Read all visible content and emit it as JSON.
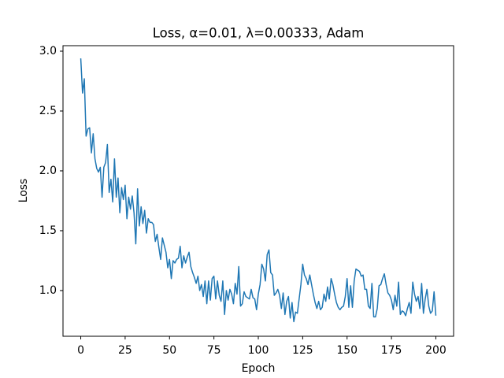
{
  "chart_data": {
    "type": "line",
    "title": "Loss, α=0.01, λ=0.00333, Adam",
    "x_label": "Epoch",
    "y_label": "Loss",
    "x": [
      0,
      1,
      2,
      3,
      4,
      5,
      6,
      7,
      8,
      9,
      10,
      11,
      12,
      13,
      14,
      15,
      16,
      17,
      18,
      19,
      20,
      21,
      22,
      23,
      24,
      25,
      26,
      27,
      28,
      29,
      30,
      31,
      32,
      33,
      34,
      35,
      36,
      37,
      38,
      39,
      40,
      41,
      42,
      43,
      44,
      45,
      46,
      47,
      48,
      49,
      50,
      51,
      52,
      53,
      54,
      55,
      56,
      57,
      58,
      59,
      60,
      61,
      62,
      63,
      64,
      65,
      66,
      67,
      68,
      69,
      70,
      71,
      72,
      73,
      74,
      75,
      76,
      77,
      78,
      79,
      80,
      81,
      82,
      83,
      84,
      85,
      86,
      87,
      88,
      89,
      90,
      91,
      92,
      93,
      94,
      95,
      96,
      97,
      98,
      99,
      100,
      101,
      102,
      103,
      104,
      105,
      106,
      107,
      108,
      109,
      110,
      111,
      112,
      113,
      114,
      115,
      116,
      117,
      118,
      119,
      120,
      121,
      122,
      123,
      124,
      125,
      126,
      127,
      128,
      129,
      130,
      131,
      132,
      133,
      134,
      135,
      136,
      137,
      138,
      139,
      140,
      141,
      142,
      143,
      144,
      145,
      146,
      147,
      148,
      149,
      150,
      151,
      152,
      153,
      154,
      155,
      156,
      157,
      158,
      159,
      160,
      161,
      162,
      163,
      164,
      165,
      166,
      167,
      168,
      169,
      170,
      171,
      172,
      173,
      174,
      175,
      176,
      177,
      178,
      179,
      180,
      181,
      182,
      183,
      184,
      185,
      186,
      187,
      188,
      189,
      190,
      191,
      192,
      193,
      194,
      195,
      196,
      197,
      198,
      199,
      200
    ],
    "series": [
      {
        "name": "Loss",
        "color": "#1f77b4",
        "values": [
          2.94,
          2.65,
          2.77,
          2.29,
          2.35,
          2.36,
          2.15,
          2.31,
          2.1,
          2.02,
          1.99,
          2.03,
          1.78,
          2.03,
          2.07,
          2.22,
          1.82,
          1.93,
          1.74,
          2.1,
          1.78,
          1.94,
          1.65,
          1.86,
          1.76,
          1.88,
          1.6,
          1.78,
          1.68,
          1.79,
          1.65,
          1.39,
          1.85,
          1.54,
          1.7,
          1.56,
          1.67,
          1.48,
          1.6,
          1.57,
          1.57,
          1.55,
          1.41,
          1.47,
          1.36,
          1.26,
          1.44,
          1.38,
          1.32,
          1.19,
          1.26,
          1.1,
          1.25,
          1.23,
          1.26,
          1.27,
          1.37,
          1.19,
          1.29,
          1.23,
          1.28,
          1.32,
          1.2,
          1.15,
          1.11,
          1.06,
          1.12,
          1.0,
          1.05,
          0.95,
          1.08,
          0.89,
          1.08,
          0.92,
          1.1,
          1.12,
          0.93,
          1.08,
          0.96,
          0.91,
          1.08,
          0.8,
          1.0,
          0.92,
          1.01,
          0.97,
          0.89,
          1.06,
          0.97,
          1.2,
          0.87,
          0.89,
          0.99,
          0.95,
          0.94,
          0.93,
          1.01,
          0.94,
          0.93,
          0.84,
          0.97,
          1.05,
          1.22,
          1.18,
          1.08,
          1.3,
          1.34,
          1.15,
          1.13,
          0.96,
          0.98,
          1.01,
          0.96,
          0.85,
          0.98,
          0.8,
          0.91,
          0.95,
          0.77,
          0.9,
          0.74,
          0.82,
          0.81,
          0.93,
          1.05,
          1.22,
          1.13,
          1.1,
          1.05,
          1.13,
          1.05,
          0.97,
          0.9,
          0.85,
          0.91,
          0.84,
          0.86,
          0.97,
          0.91,
          1.03,
          0.93,
          1.1,
          1.05,
          0.97,
          0.9,
          0.86,
          0.84,
          0.86,
          0.87,
          0.95,
          1.1,
          0.86,
          1.04,
          0.86,
          1.08,
          1.18,
          1.17,
          1.16,
          1.12,
          1.13,
          1.01,
          1.01,
          0.87,
          0.85,
          1.06,
          0.78,
          0.78,
          0.85,
          1.04,
          1.05,
          1.1,
          1.14,
          1.05,
          0.98,
          0.96,
          0.92,
          0.84,
          0.96,
          0.87,
          1.07,
          0.8,
          0.83,
          0.82,
          0.79,
          0.85,
          0.9,
          0.81,
          1.07,
          0.97,
          0.91,
          0.95,
          0.85,
          1.06,
          0.81,
          0.93,
          1.01,
          0.87,
          0.81,
          0.83,
          0.99,
          0.79
        ]
      }
    ],
    "xlim": [
      -10,
      210
    ],
    "ylim": [
      0.618,
      3.046
    ],
    "xticks": [
      0,
      25,
      50,
      75,
      100,
      125,
      150,
      175,
      200
    ],
    "yticks": [
      {
        "value": 1,
        "label": "1.0"
      },
      1.5,
      {
        "value": 2,
        "label": "2.0"
      },
      2.5,
      {
        "value": 3,
        "label": "3.0"
      }
    ],
    "grid": false
  }
}
